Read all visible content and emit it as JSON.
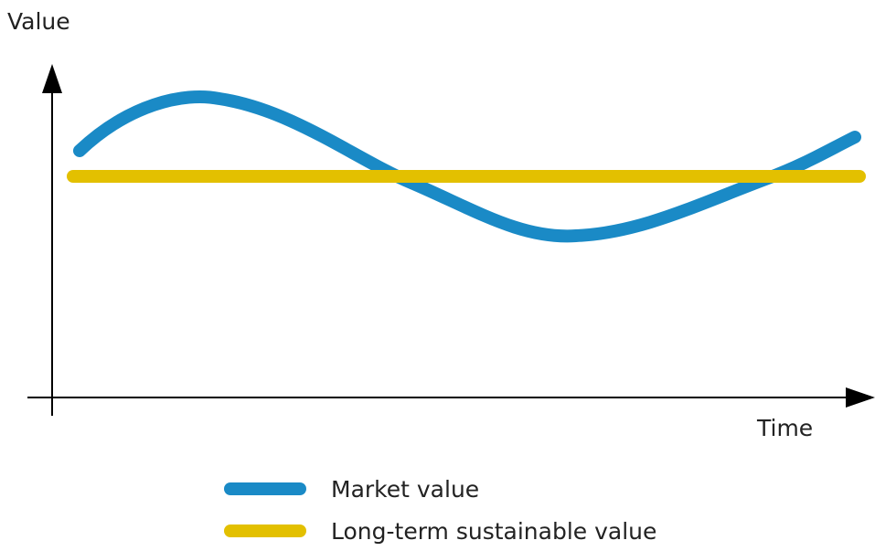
{
  "axes": {
    "y_label": "Value",
    "x_label": "Time"
  },
  "legend": [
    {
      "label": "Market value",
      "color": "#1a8ac6"
    },
    {
      "label": "Long-term sustainable value",
      "color": "#e3c000"
    }
  ]
}
